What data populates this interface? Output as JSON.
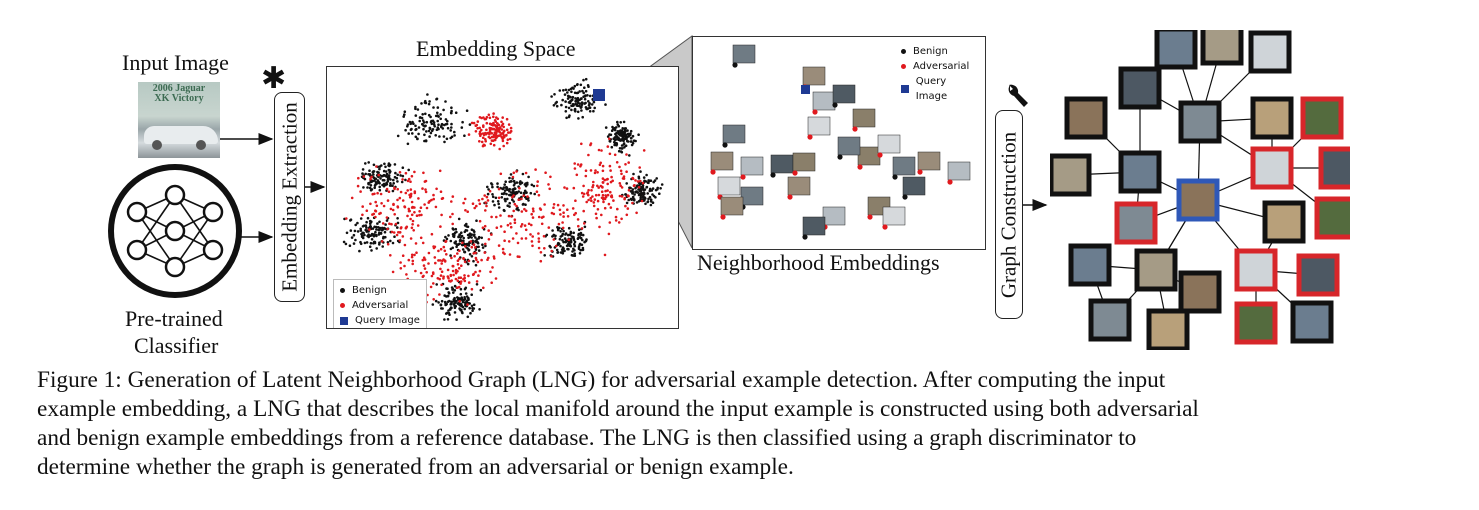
{
  "figure": {
    "input_image_label": "Input Image",
    "input_image_text": [
      "2006 Jaguar",
      "XK Victory"
    ],
    "classifier_label": [
      "Pre-trained",
      "Classifier"
    ],
    "embedding_extraction_label": "Embedding Extraction",
    "embedding_space_title": "Embedding Space",
    "neighborhood_label": "Neighborhood Embeddings",
    "graph_construction_label": "Graph Construction",
    "legend": {
      "benign": "Benign",
      "adversarial": "Adversarial",
      "query": "Query Image"
    },
    "colors": {
      "benign": "#111111",
      "adversarial": "#e0191e",
      "query": "#1f3a93",
      "benign_node_border": "#111111",
      "adversarial_node_border": "#d7262a",
      "query_node_border": "#2f58b8"
    },
    "icons": [
      "gear-icon",
      "wrench-icon",
      "arrow-icon"
    ]
  },
  "caption": {
    "lines": [
      "Figure 1: Generation of Latent Neighborhood Graph (LNG) for adversarial example detection. After computing the input",
      "example embedding, a LNG that describes the local manifold around the input example is constructed using both adversarial",
      "and benign example embeddings from a reference database. The LNG is then classified using a graph discriminator to",
      "determine whether the graph is generated from an adversarial or benign example."
    ]
  }
}
